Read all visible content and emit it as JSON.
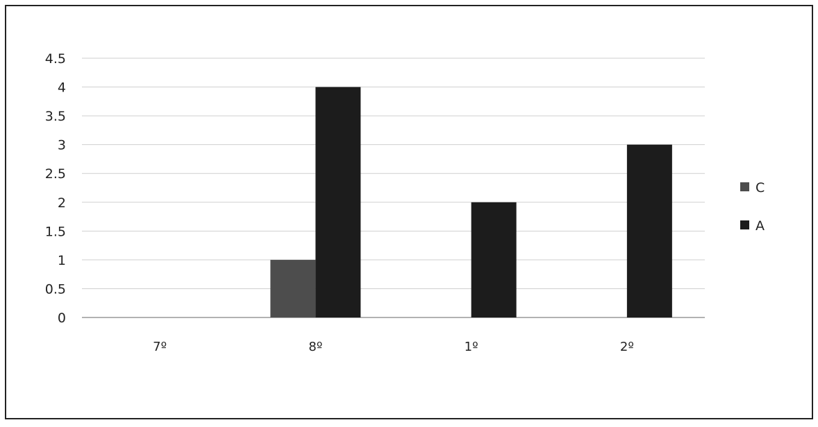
{
  "chart_data": {
    "type": "bar",
    "title": "",
    "xlabel": "",
    "ylabel": "",
    "categories": [
      "7º",
      "8º",
      "1º",
      "2º"
    ],
    "series": [
      {
        "name": "C",
        "values": [
          0,
          1,
          0,
          0
        ],
        "color": "#4d4d4d"
      },
      {
        "name": "A",
        "values": [
          0,
          4,
          2,
          3
        ],
        "color": "#1c1c1c"
      }
    ],
    "ylim": [
      0,
      4.5
    ],
    "yticks": [
      "0",
      "0.5",
      "1",
      "1.5",
      "2",
      "2.5",
      "3",
      "3.5",
      "4",
      "4.5"
    ],
    "grid": true,
    "legend_position": "right"
  }
}
